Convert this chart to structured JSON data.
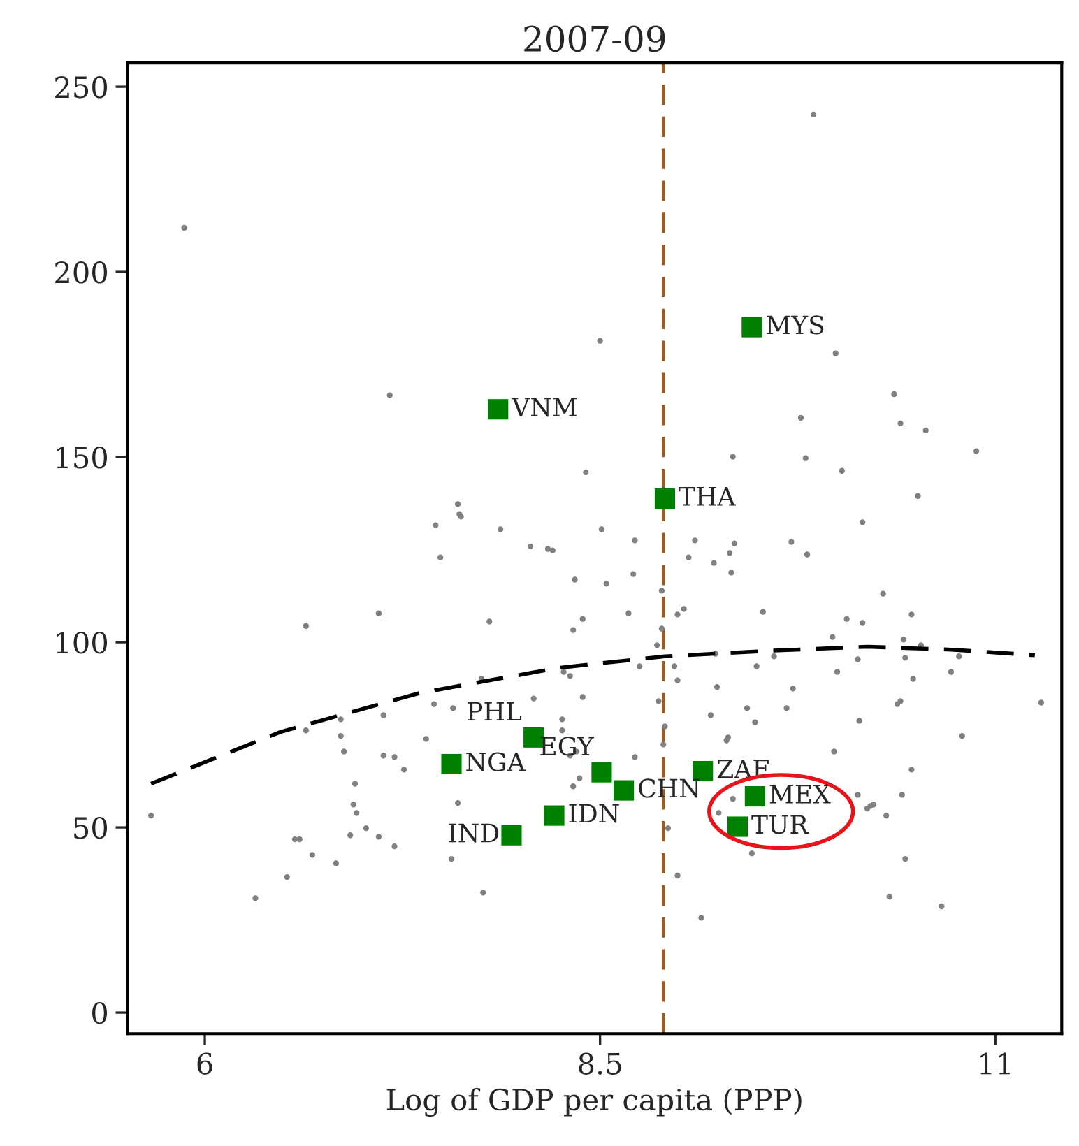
{
  "chart_data": {
    "type": "scatter",
    "title": "2007-09",
    "xlabel": "Log of GDP per capita (PPP)",
    "xlim": [
      5.51,
      11.42
    ],
    "ylim": [
      -5.7,
      256.4
    ],
    "xticks": [
      6,
      8.5,
      11
    ],
    "yticks": [
      0,
      50,
      100,
      150,
      200,
      250
    ],
    "grid": false,
    "legend": false,
    "ref_lines": [
      {
        "axis": "x",
        "value": 8.9,
        "color": "#9c5a1e",
        "line_style": "dashed"
      }
    ],
    "series": [
      {
        "color": "#808080",
        "marker": "circle",
        "x": [
          5.87,
          7.17,
          8.41,
          8.5,
          7.6,
          7.61,
          7.62,
          7.46,
          7.87,
          9.85,
          9.99,
          10.36,
          9.77,
          10.4,
          10.56,
          10.88,
          9.34,
          9.8,
          10.03,
          10.51,
          10.16,
          8.51,
          7.49,
          8.06,
          8.17,
          8.2,
          8.34,
          7.1,
          6.64,
          7.8,
          8.39,
          8.33,
          8.27,
          8.31,
          7.75,
          8.39,
          8.08,
          6.86,
          7.13,
          6.64,
          7.45,
          7.57,
          6.86,
          6.88,
          7.4,
          8.26,
          8.26,
          7.13,
          7.2,
          7.26,
          8.31,
          8.35,
          8.37,
          8.33,
          6.95,
          7.6,
          6.94,
          6.96,
          7.02,
          6.92,
          7.1,
          7.2,
          6.57,
          6.6,
          6.68,
          6.83,
          7.56,
          6.52,
          7.76,
          6.32,
          5.66,
          8.72,
          9.1,
          9.35,
          9.32,
          9.06,
          9.22,
          9.33,
          9.71,
          9.81,
          8.71,
          8.54,
          8.89,
          10.29,
          8.68,
          8.99,
          9.03,
          9.53,
          10.06,
          10.16,
          10.47,
          9.97,
          10.42,
          8.89,
          8.86,
          10.53,
          8.75,
          8.97,
          8.99,
          9.23,
          9.6,
          9.49,
          10.13,
          10.0,
          10.43,
          10.77,
          10.72,
          10.48,
          9.24,
          9.72,
          8.87,
          9.43,
          9.68,
          10.38,
          10.4,
          11.29,
          9.2,
          9.48,
          10.14,
          8.91,
          9.3,
          9.31,
          10.79,
          8.9,
          9.98,
          8.72,
          10.47,
          9.34,
          9.25,
          10.13,
          10.19,
          10.23,
          10.21,
          10.41,
          10.31,
          8.93,
          9.46,
          10.43,
          8.99,
          10.33,
          10.66,
          9.14
        ],
        "values": [
          211.9,
          166.7,
          145.9,
          181.4,
          137.3,
          134.6,
          133.9,
          131.6,
          130.5,
          242.5,
          178.0,
          167.0,
          160.6,
          159.1,
          157.2,
          151.6,
          150.1,
          149.7,
          146.3,
          139.5,
          132.4,
          130.5,
          122.9,
          125.9,
          125.2,
          124.8,
          116.9,
          107.8,
          104.4,
          105.6,
          106.3,
          103.3,
          92.0,
          90.9,
          90.1,
          85.2,
          84.8,
          79.2,
          80.3,
          76.2,
          83.3,
          82.2,
          74.7,
          70.5,
          73.9,
          79.2,
          76.2,
          69.4,
          69.0,
          65.6,
          69.4,
          70.5,
          63.3,
          61.1,
          61.8,
          56.6,
          56.2,
          53.9,
          49.8,
          47.9,
          47.5,
          44.9,
          46.8,
          46.8,
          42.6,
          40.3,
          41.5,
          36.6,
          32.4,
          30.9,
          53.2,
          127.5,
          127.5,
          126.7,
          124.1,
          122.9,
          121.4,
          118.8,
          127.1,
          123.7,
          118.4,
          115.8,
          113.9,
          113.1,
          107.8,
          107.5,
          109.0,
          108.2,
          106.3,
          105.2,
          107.5,
          101.4,
          100.7,
          103.7,
          99.2,
          99.2,
          93.5,
          93.5,
          89.7,
          96.9,
          96.2,
          93.5,
          95.4,
          92.0,
          95.8,
          96.2,
          92.0,
          90.1,
          87.9,
          87.5,
          84.1,
          82.2,
          82.2,
          83.3,
          84.1,
          83.7,
          80.3,
          78.4,
          78.8,
          77.3,
          73.5,
          74.3,
          74.7,
          72.4,
          70.5,
          69.0,
          65.6,
          57.7,
          53.9,
          58.8,
          55.1,
          56.2,
          55.8,
          58.8,
          53.2,
          49.8,
          43.0,
          41.5,
          37.0,
          31.3,
          28.7,
          25.6
        ]
      },
      {
        "type": "line",
        "color": "#000000",
        "line_style": "dashed",
        "marker": "none",
        "x": [
          5.66,
          6.48,
          7.36,
          8.24,
          8.91,
          9.57,
          10.19,
          10.72,
          11.25
        ],
        "values": [
          61.8,
          75.8,
          86.3,
          93.1,
          96.2,
          97.7,
          98.8,
          98.0,
          96.5
        ]
      },
      {
        "color": "#008000",
        "marker": "square",
        "x": [
          7.855,
          9.46,
          8.91,
          8.08,
          7.56,
          8.51,
          7.94,
          8.21,
          8.65,
          9.15,
          9.48,
          9.37
        ],
        "values": [
          162.9,
          185.1,
          138.8,
          74.3,
          67.1,
          64.9,
          47.9,
          53.2,
          60.0,
          65.2,
          58.4,
          50.2
        ],
        "value_labels": [
          "VNM",
          "MYS",
          "THA",
          "PHL",
          "NGA",
          "EGY",
          "IND",
          "IDN",
          "CHN",
          "ZAF",
          "MEX",
          "TUR"
        ]
      }
    ]
  }
}
